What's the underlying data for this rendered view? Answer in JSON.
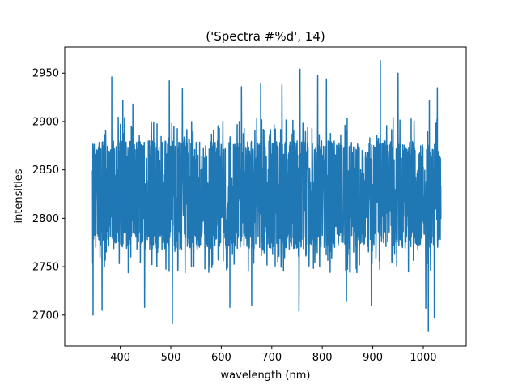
{
  "chart_data": {
    "type": "line",
    "title": "('Spectra #%d', 14)",
    "xlabel": "wavelength (nm)",
    "ylabel": "intensities",
    "xlim": [
      290,
      1085
    ],
    "ylim": [
      2668,
      2977
    ],
    "x_ticks": [
      400,
      500,
      600,
      700,
      800,
      900,
      1000
    ],
    "y_ticks": [
      2700,
      2750,
      2800,
      2850,
      2900,
      2950
    ],
    "grid": false,
    "line_color": "#1f77b4",
    "series": [
      {
        "x_start": 345,
        "x_end": 1035,
        "n_points": 2048,
        "baseline": 2822,
        "typical_low": 2768,
        "typical_high": 2880,
        "min": 2683,
        "max": 2963,
        "peaks": [
          [
            383,
            2946
          ],
          [
            405,
            2922
          ],
          [
            425,
            2918
          ],
          [
            497,
            2942
          ],
          [
            523,
            2934
          ],
          [
            640,
            2936
          ],
          [
            678,
            2939
          ],
          [
            720,
            2938
          ],
          [
            756,
            2954
          ],
          [
            791,
            2948
          ],
          [
            808,
            2944
          ],
          [
            915,
            2963
          ],
          [
            950,
            2950
          ],
          [
            1012,
            2922
          ],
          [
            1028,
            2935
          ]
        ],
        "troughs": [
          [
            346,
            2700
          ],
          [
            364,
            2705
          ],
          [
            448,
            2708
          ],
          [
            503,
            2691
          ],
          [
            617,
            2708
          ],
          [
            660,
            2710
          ],
          [
            754,
            2704
          ],
          [
            848,
            2714
          ],
          [
            897,
            2710
          ],
          [
            1005,
            2707
          ],
          [
            1010,
            2683
          ],
          [
            1022,
            2697
          ]
        ]
      }
    ]
  }
}
